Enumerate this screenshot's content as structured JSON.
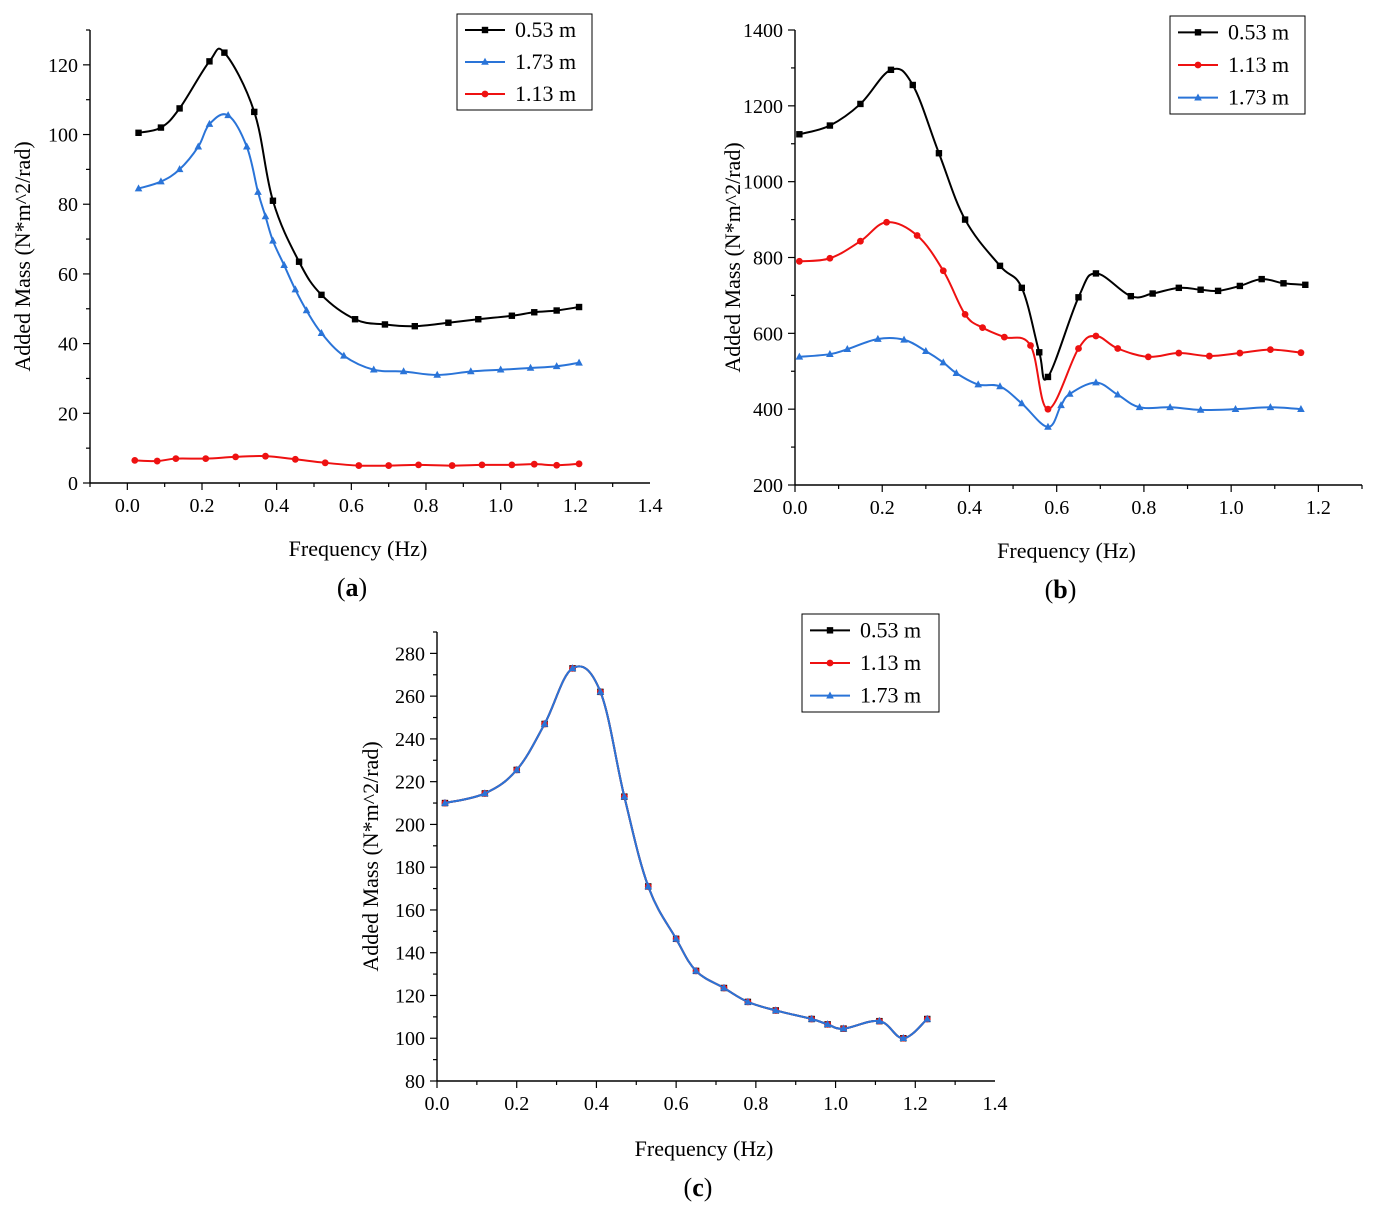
{
  "colors": {
    "black": "#000000",
    "red": "#ee1111",
    "blue": "#2a74d8"
  },
  "chart_data": [
    {
      "id": "a",
      "type": "line",
      "panel_label": "a",
      "xlabel": "Frequency (Hz)",
      "ylabel": "Added Mass (N*m^2/rad)",
      "xlim": [
        -0.1,
        1.4
      ],
      "ylim": [
        0,
        130
      ],
      "xticks": [
        0.0,
        0.2,
        0.4,
        0.6,
        0.8,
        1.0,
        1.2,
        1.4
      ],
      "xticklabels": [
        "0.0",
        "0.2",
        "0.4",
        "0.6",
        "0.8",
        "1.0",
        "1.2",
        "1.4"
      ],
      "yticks": [
        0,
        20,
        40,
        60,
        80,
        100,
        120
      ],
      "yticklabels": [
        "0",
        "20",
        "40",
        "60",
        "80",
        "100",
        "120"
      ],
      "legend_position": "top-right",
      "series": [
        {
          "name": "0.53 m",
          "color": "#000000",
          "marker": "square",
          "x": [
            0.03,
            0.09,
            0.14,
            0.22,
            0.26,
            0.34,
            0.39,
            0.46,
            0.52,
            0.61,
            0.69,
            0.77,
            0.86,
            0.94,
            1.03,
            1.09,
            1.15,
            1.21
          ],
          "y": [
            100.5,
            102,
            107.5,
            121,
            123.5,
            106.5,
            81,
            63.5,
            54,
            47,
            45.5,
            45,
            46,
            47,
            48,
            49,
            49.5,
            50.5
          ]
        },
        {
          "name": "1.73 m",
          "color": "#2a74d8",
          "marker": "triangle",
          "x": [
            0.03,
            0.09,
            0.14,
            0.19,
            0.22,
            0.27,
            0.32,
            0.35,
            0.37,
            0.39,
            0.42,
            0.45,
            0.48,
            0.52,
            0.58,
            0.66,
            0.74,
            0.83,
            0.92,
            1.0,
            1.08,
            1.15,
            1.21
          ],
          "y": [
            84.5,
            86.5,
            90,
            96.5,
            103,
            105.5,
            96.5,
            83.5,
            76.5,
            69.5,
            62.5,
            55.5,
            49.5,
            43,
            36.5,
            32.5,
            32,
            31,
            32,
            32.5,
            33,
            33.5,
            34.5
          ]
        },
        {
          "name": "1.13 m",
          "color": "#ee1111",
          "marker": "circle",
          "x": [
            0.02,
            0.08,
            0.13,
            0.21,
            0.29,
            0.37,
            0.45,
            0.53,
            0.62,
            0.7,
            0.78,
            0.87,
            0.95,
            1.03,
            1.09,
            1.15,
            1.21
          ],
          "y": [
            6.5,
            6.3,
            7,
            7,
            7.5,
            7.7,
            6.8,
            5.8,
            5,
            5,
            5.2,
            5,
            5.2,
            5.2,
            5.4,
            5.1,
            5.5
          ]
        }
      ]
    },
    {
      "id": "b",
      "type": "line",
      "panel_label": "b",
      "xlabel": "Frequency (Hz)",
      "ylabel": "Added Mass (N*m^2/rad)",
      "xlim": [
        0.0,
        1.3
      ],
      "ylim": [
        200,
        1400
      ],
      "xticks": [
        0.0,
        0.2,
        0.4,
        0.6,
        0.8,
        1.0,
        1.2
      ],
      "xticklabels": [
        "0.0",
        "0.2",
        "0.4",
        "0.6",
        "0.8",
        "1.0",
        "1.2"
      ],
      "yticks": [
        200,
        400,
        600,
        800,
        1000,
        1200,
        1400
      ],
      "yticklabels": [
        "200",
        "400",
        "600",
        "800",
        "1000",
        "1200",
        "1400"
      ],
      "legend_position": "top-right",
      "series": [
        {
          "name": "0.53 m",
          "color": "#000000",
          "marker": "square",
          "x": [
            0.01,
            0.08,
            0.15,
            0.22,
            0.27,
            0.33,
            0.39,
            0.47,
            0.52,
            0.56,
            0.58,
            0.65,
            0.69,
            0.77,
            0.82,
            0.88,
            0.93,
            0.97,
            1.02,
            1.07,
            1.12,
            1.17
          ],
          "y": [
            1125,
            1148,
            1205,
            1295,
            1255,
            1075,
            900,
            778,
            720,
            550,
            485,
            695,
            758,
            698,
            705,
            720,
            715,
            712,
            725,
            743,
            732,
            728
          ]
        },
        {
          "name": "1.13 m",
          "color": "#ee1111",
          "marker": "circle",
          "x": [
            0.01,
            0.08,
            0.15,
            0.21,
            0.28,
            0.34,
            0.39,
            0.43,
            0.48,
            0.54,
            0.58,
            0.65,
            0.69,
            0.74,
            0.81,
            0.88,
            0.95,
            1.02,
            1.09,
            1.16
          ],
          "y": [
            790,
            798,
            843,
            893,
            858,
            765,
            650,
            615,
            590,
            568,
            400,
            560,
            593,
            560,
            538,
            548,
            540,
            548,
            557,
            549
          ]
        },
        {
          "name": "1.73 m",
          "color": "#2a74d8",
          "marker": "triangle",
          "x": [
            0.01,
            0.08,
            0.12,
            0.19,
            0.25,
            0.3,
            0.34,
            0.37,
            0.42,
            0.47,
            0.52,
            0.58,
            0.61,
            0.63,
            0.69,
            0.74,
            0.79,
            0.86,
            0.93,
            1.01,
            1.09,
            1.16
          ],
          "y": [
            538,
            545,
            558,
            585,
            583,
            553,
            523,
            495,
            465,
            460,
            415,
            353,
            410,
            440,
            470,
            438,
            405,
            405,
            398,
            400,
            405,
            400
          ]
        }
      ]
    },
    {
      "id": "c",
      "type": "line",
      "panel_label": "c",
      "xlabel": "Frequency (Hz)",
      "ylabel": "Added Mass (N*m^2/rad)",
      "xlim": [
        0.0,
        1.4
      ],
      "ylim": [
        80,
        290
      ],
      "xticks": [
        0.0,
        0.2,
        0.4,
        0.6,
        0.8,
        1.0,
        1.2,
        1.4
      ],
      "xticklabels": [
        "0.0",
        "0.2",
        "0.4",
        "0.6",
        "0.8",
        "1.0",
        "1.2",
        "1.4"
      ],
      "yticks": [
        80,
        100,
        120,
        140,
        160,
        180,
        200,
        220,
        240,
        260,
        280
      ],
      "yticklabels": [
        "80",
        "100",
        "120",
        "140",
        "160",
        "180",
        "200",
        "220",
        "240",
        "260",
        "280"
      ],
      "legend_position": "top-right",
      "shared_x": [
        0.02,
        0.12,
        0.2,
        0.27,
        0.34,
        0.41,
        0.47,
        0.53,
        0.6,
        0.65,
        0.72,
        0.78,
        0.85,
        0.94,
        0.98,
        1.02,
        1.11,
        1.17,
        1.23
      ],
      "shared_y": [
        210,
        214.5,
        225.5,
        247,
        273,
        262,
        213,
        171,
        146.5,
        131.5,
        123.5,
        117,
        113,
        109,
        106.5,
        104.5,
        108,
        100,
        109
      ],
      "series": [
        {
          "name": "0.53 m",
          "color": "#000000",
          "marker": "square",
          "x": [
            0.02,
            0.12,
            0.2,
            0.27,
            0.34,
            0.41,
            0.47,
            0.53,
            0.6,
            0.65,
            0.72,
            0.78,
            0.85,
            0.94,
            0.98,
            1.02,
            1.11,
            1.17,
            1.23
          ],
          "y": [
            210,
            214.5,
            225.5,
            247,
            273,
            262,
            213,
            171,
            146.5,
            131.5,
            123.5,
            117,
            113,
            109,
            106.5,
            104.5,
            108,
            100,
            109
          ]
        },
        {
          "name": "1.13 m",
          "color": "#ee1111",
          "marker": "circle",
          "x": [
            0.02,
            0.12,
            0.2,
            0.27,
            0.34,
            0.41,
            0.47,
            0.53,
            0.6,
            0.65,
            0.72,
            0.78,
            0.85,
            0.94,
            0.98,
            1.02,
            1.11,
            1.17,
            1.23
          ],
          "y": [
            210,
            214.5,
            225.5,
            247,
            273,
            262,
            213,
            171,
            146.5,
            131.5,
            123.5,
            117,
            113,
            109,
            106.5,
            104.5,
            108,
            100,
            109
          ]
        },
        {
          "name": "1.73 m",
          "color": "#2a74d8",
          "marker": "triangle",
          "x": [
            0.02,
            0.12,
            0.2,
            0.27,
            0.34,
            0.41,
            0.47,
            0.53,
            0.6,
            0.65,
            0.72,
            0.78,
            0.85,
            0.94,
            0.98,
            1.02,
            1.11,
            1.17,
            1.23
          ],
          "y": [
            210,
            214.5,
            225.5,
            247,
            273,
            262,
            213,
            171,
            146.5,
            131.5,
            123.5,
            117,
            113,
            109,
            106.5,
            104.5,
            108,
            100,
            109
          ]
        }
      ]
    }
  ]
}
